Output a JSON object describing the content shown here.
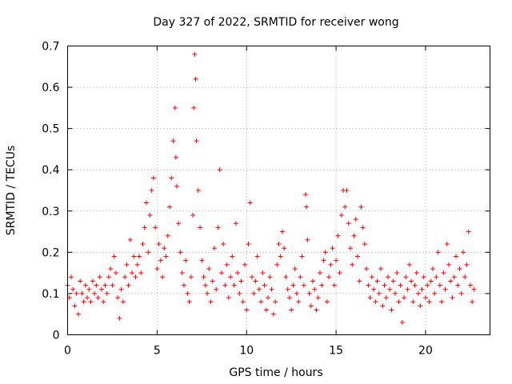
{
  "chart_data": {
    "type": "scatter",
    "title": "Day 327 of 2022, SRMTID for receiver wong",
    "xlabel": "GPS time / hours",
    "ylabel": "SRMTID / TECUs",
    "xlim": [
      0,
      23.6
    ],
    "ylim": [
      0,
      0.7
    ],
    "x_ticks": [
      0,
      5,
      10,
      15,
      20
    ],
    "x_tick_labels": [
      "0",
      "5",
      "10",
      "15",
      "20"
    ],
    "y_ticks": [
      0,
      0.1,
      0.2,
      0.3,
      0.4,
      0.5,
      0.6,
      0.7
    ],
    "y_tick_labels": [
      "0",
      "0.1",
      "0.2",
      "0.3",
      "0.4",
      "0.5",
      "0.6",
      "0.7"
    ],
    "grid": true,
    "marker": "+",
    "color": "#ff0000",
    "series": [
      {
        "name": "SRMTID",
        "points": [
          [
            0.0,
            0.12
          ],
          [
            0.1,
            0.09
          ],
          [
            0.2,
            0.14
          ],
          [
            0.3,
            0.11
          ],
          [
            0.4,
            0.07
          ],
          [
            0.5,
            0.1
          ],
          [
            0.6,
            0.05
          ],
          [
            0.7,
            0.13
          ],
          [
            0.8,
            0.1
          ],
          [
            0.9,
            0.08
          ],
          [
            1.0,
            0.12
          ],
          [
            1.1,
            0.09
          ],
          [
            1.2,
            0.11
          ],
          [
            1.3,
            0.08
          ],
          [
            1.4,
            0.13
          ],
          [
            1.5,
            0.1
          ],
          [
            1.6,
            0.12
          ],
          [
            1.7,
            0.09
          ],
          [
            1.8,
            0.14
          ],
          [
            1.9,
            0.11
          ],
          [
            2.0,
            0.08
          ],
          [
            2.1,
            0.12
          ],
          [
            2.2,
            0.1
          ],
          [
            2.3,
            0.14
          ],
          [
            2.4,
            0.16
          ],
          [
            2.5,
            0.12
          ],
          [
            2.6,
            0.19
          ],
          [
            2.7,
            0.15
          ],
          [
            2.8,
            0.09
          ],
          [
            2.9,
            0.04
          ],
          [
            3.0,
            0.11
          ],
          [
            3.1,
            0.08
          ],
          [
            3.2,
            0.14
          ],
          [
            3.3,
            0.17
          ],
          [
            3.4,
            0.12
          ],
          [
            3.5,
            0.23
          ],
          [
            3.6,
            0.15
          ],
          [
            3.7,
            0.19
          ],
          [
            3.8,
            0.14
          ],
          [
            3.9,
            0.17
          ],
          [
            4.0,
            0.19
          ],
          [
            4.1,
            0.15
          ],
          [
            4.2,
            0.22
          ],
          [
            4.3,
            0.26
          ],
          [
            4.4,
            0.32
          ],
          [
            4.5,
            0.2
          ],
          [
            4.6,
            0.29
          ],
          [
            4.7,
            0.35
          ],
          [
            4.8,
            0.38
          ],
          [
            4.9,
            0.26
          ],
          [
            5.0,
            0.16
          ],
          [
            5.1,
            0.22
          ],
          [
            5.2,
            0.18
          ],
          [
            5.3,
            0.14
          ],
          [
            5.4,
            0.21
          ],
          [
            5.5,
            0.19
          ],
          [
            5.6,
            0.24
          ],
          [
            5.7,
            0.31
          ],
          [
            5.8,
            0.38
          ],
          [
            5.9,
            0.47
          ],
          [
            6.0,
            0.55
          ],
          [
            6.05,
            0.43
          ],
          [
            6.1,
            0.36
          ],
          [
            6.2,
            0.27
          ],
          [
            6.3,
            0.2
          ],
          [
            6.4,
            0.15
          ],
          [
            6.5,
            0.12
          ],
          [
            6.6,
            0.18
          ],
          [
            6.7,
            0.1
          ],
          [
            6.8,
            0.08
          ],
          [
            6.9,
            0.14
          ],
          [
            7.0,
            0.29
          ],
          [
            7.05,
            0.55
          ],
          [
            7.1,
            0.68
          ],
          [
            7.15,
            0.62
          ],
          [
            7.2,
            0.47
          ],
          [
            7.3,
            0.35
          ],
          [
            7.4,
            0.26
          ],
          [
            7.5,
            0.18
          ],
          [
            7.6,
            0.14
          ],
          [
            7.7,
            0.12
          ],
          [
            7.8,
            0.1
          ],
          [
            7.9,
            0.16
          ],
          [
            8.0,
            0.08
          ],
          [
            8.1,
            0.13
          ],
          [
            8.2,
            0.21
          ],
          [
            8.3,
            0.11
          ],
          [
            8.4,
            0.26
          ],
          [
            8.5,
            0.4
          ],
          [
            8.6,
            0.15
          ],
          [
            8.7,
            0.22
          ],
          [
            8.8,
            0.12
          ],
          [
            8.9,
            0.17
          ],
          [
            9.0,
            0.09
          ],
          [
            9.1,
            0.14
          ],
          [
            9.2,
            0.19
          ],
          [
            9.3,
            0.12
          ],
          [
            9.4,
            0.27
          ],
          [
            9.5,
            0.15
          ],
          [
            9.6,
            0.1
          ],
          [
            9.7,
            0.13
          ],
          [
            9.8,
            0.08
          ],
          [
            9.9,
            0.17
          ],
          [
            10.0,
            0.06
          ],
          [
            10.1,
            0.22
          ],
          [
            10.2,
            0.32
          ],
          [
            10.3,
            0.14
          ],
          [
            10.4,
            0.1
          ],
          [
            10.5,
            0.13
          ],
          [
            10.6,
            0.19
          ],
          [
            10.7,
            0.11
          ],
          [
            10.8,
            0.08
          ],
          [
            10.9,
            0.15
          ],
          [
            11.0,
            0.12
          ],
          [
            11.1,
            0.06
          ],
          [
            11.2,
            0.09
          ],
          [
            11.3,
            0.14
          ],
          [
            11.4,
            0.11
          ],
          [
            11.5,
            0.05
          ],
          [
            11.6,
            0.08
          ],
          [
            11.7,
            0.17
          ],
          [
            11.8,
            0.22
          ],
          [
            11.9,
            0.19
          ],
          [
            12.0,
            0.25
          ],
          [
            12.1,
            0.21
          ],
          [
            12.2,
            0.14
          ],
          [
            12.3,
            0.11
          ],
          [
            12.4,
            0.09
          ],
          [
            12.5,
            0.06
          ],
          [
            12.6,
            0.12
          ],
          [
            12.7,
            0.16
          ],
          [
            12.8,
            0.1
          ],
          [
            12.9,
            0.08
          ],
          [
            13.0,
            0.14
          ],
          [
            13.1,
            0.19
          ],
          [
            13.2,
            0.12
          ],
          [
            13.3,
            0.34
          ],
          [
            13.35,
            0.31
          ],
          [
            13.4,
            0.23
          ],
          [
            13.5,
            0.1
          ],
          [
            13.6,
            0.07
          ],
          [
            13.7,
            0.13
          ],
          [
            13.8,
            0.11
          ],
          [
            13.9,
            0.06
          ],
          [
            14.0,
            0.09
          ],
          [
            14.1,
            0.15
          ],
          [
            14.2,
            0.12
          ],
          [
            14.3,
            0.18
          ],
          [
            14.4,
            0.2
          ],
          [
            14.5,
            0.08
          ],
          [
            14.6,
            0.14
          ],
          [
            14.7,
            0.17
          ],
          [
            14.8,
            0.21
          ],
          [
            14.9,
            0.12
          ],
          [
            15.0,
            0.18
          ],
          [
            15.1,
            0.24
          ],
          [
            15.2,
            0.15
          ],
          [
            15.3,
            0.29
          ],
          [
            15.4,
            0.35
          ],
          [
            15.5,
            0.31
          ],
          [
            15.6,
            0.35
          ],
          [
            15.7,
            0.27
          ],
          [
            15.8,
            0.21
          ],
          [
            15.9,
            0.17
          ],
          [
            16.0,
            0.24
          ],
          [
            16.1,
            0.28
          ],
          [
            16.2,
            0.19
          ],
          [
            16.3,
            0.13
          ],
          [
            16.4,
            0.31
          ],
          [
            16.5,
            0.26
          ],
          [
            16.6,
            0.22
          ],
          [
            16.7,
            0.16
          ],
          [
            16.8,
            0.12
          ],
          [
            16.9,
            0.09
          ],
          [
            17.0,
            0.14
          ],
          [
            17.1,
            0.11
          ],
          [
            17.2,
            0.08
          ],
          [
            17.3,
            0.13
          ],
          [
            17.4,
            0.1
          ],
          [
            17.5,
            0.16
          ],
          [
            17.6,
            0.07
          ],
          [
            17.7,
            0.12
          ],
          [
            17.8,
            0.09
          ],
          [
            17.9,
            0.14
          ],
          [
            18.0,
            0.11
          ],
          [
            18.1,
            0.06
          ],
          [
            18.2,
            0.13
          ],
          [
            18.3,
            0.1
          ],
          [
            18.4,
            0.15
          ],
          [
            18.5,
            0.08
          ],
          [
            18.6,
            0.12
          ],
          [
            18.7,
            0.03
          ],
          [
            18.8,
            0.09
          ],
          [
            18.9,
            0.14
          ],
          [
            19.0,
            0.11
          ],
          [
            19.1,
            0.17
          ],
          [
            19.2,
            0.13
          ],
          [
            19.3,
            0.08
          ],
          [
            19.4,
            0.12
          ],
          [
            19.5,
            0.15
          ],
          [
            19.6,
            0.1
          ],
          [
            19.7,
            0.07
          ],
          [
            19.8,
            0.11
          ],
          [
            19.9,
            0.14
          ],
          [
            20.0,
            0.09
          ],
          [
            20.1,
            0.12
          ],
          [
            20.2,
            0.08
          ],
          [
            20.3,
            0.13
          ],
          [
            20.4,
            0.16
          ],
          [
            20.5,
            0.1
          ],
          [
            20.6,
            0.14
          ],
          [
            20.7,
            0.2
          ],
          [
            20.8,
            0.12
          ],
          [
            20.9,
            0.08
          ],
          [
            21.0,
            0.15
          ],
          [
            21.1,
            0.11
          ],
          [
            21.2,
            0.22
          ],
          [
            21.3,
            0.17
          ],
          [
            21.4,
            0.13
          ],
          [
            21.5,
            0.09
          ],
          [
            21.6,
            0.14
          ],
          [
            21.7,
            0.19
          ],
          [
            21.8,
            0.12
          ],
          [
            21.9,
            0.16
          ],
          [
            22.0,
            0.1
          ],
          [
            22.1,
            0.2
          ],
          [
            22.2,
            0.14
          ],
          [
            22.3,
            0.17
          ],
          [
            22.4,
            0.25
          ],
          [
            22.5,
            0.12
          ],
          [
            22.6,
            0.08
          ],
          [
            22.7,
            0.11
          ]
        ]
      }
    ]
  }
}
